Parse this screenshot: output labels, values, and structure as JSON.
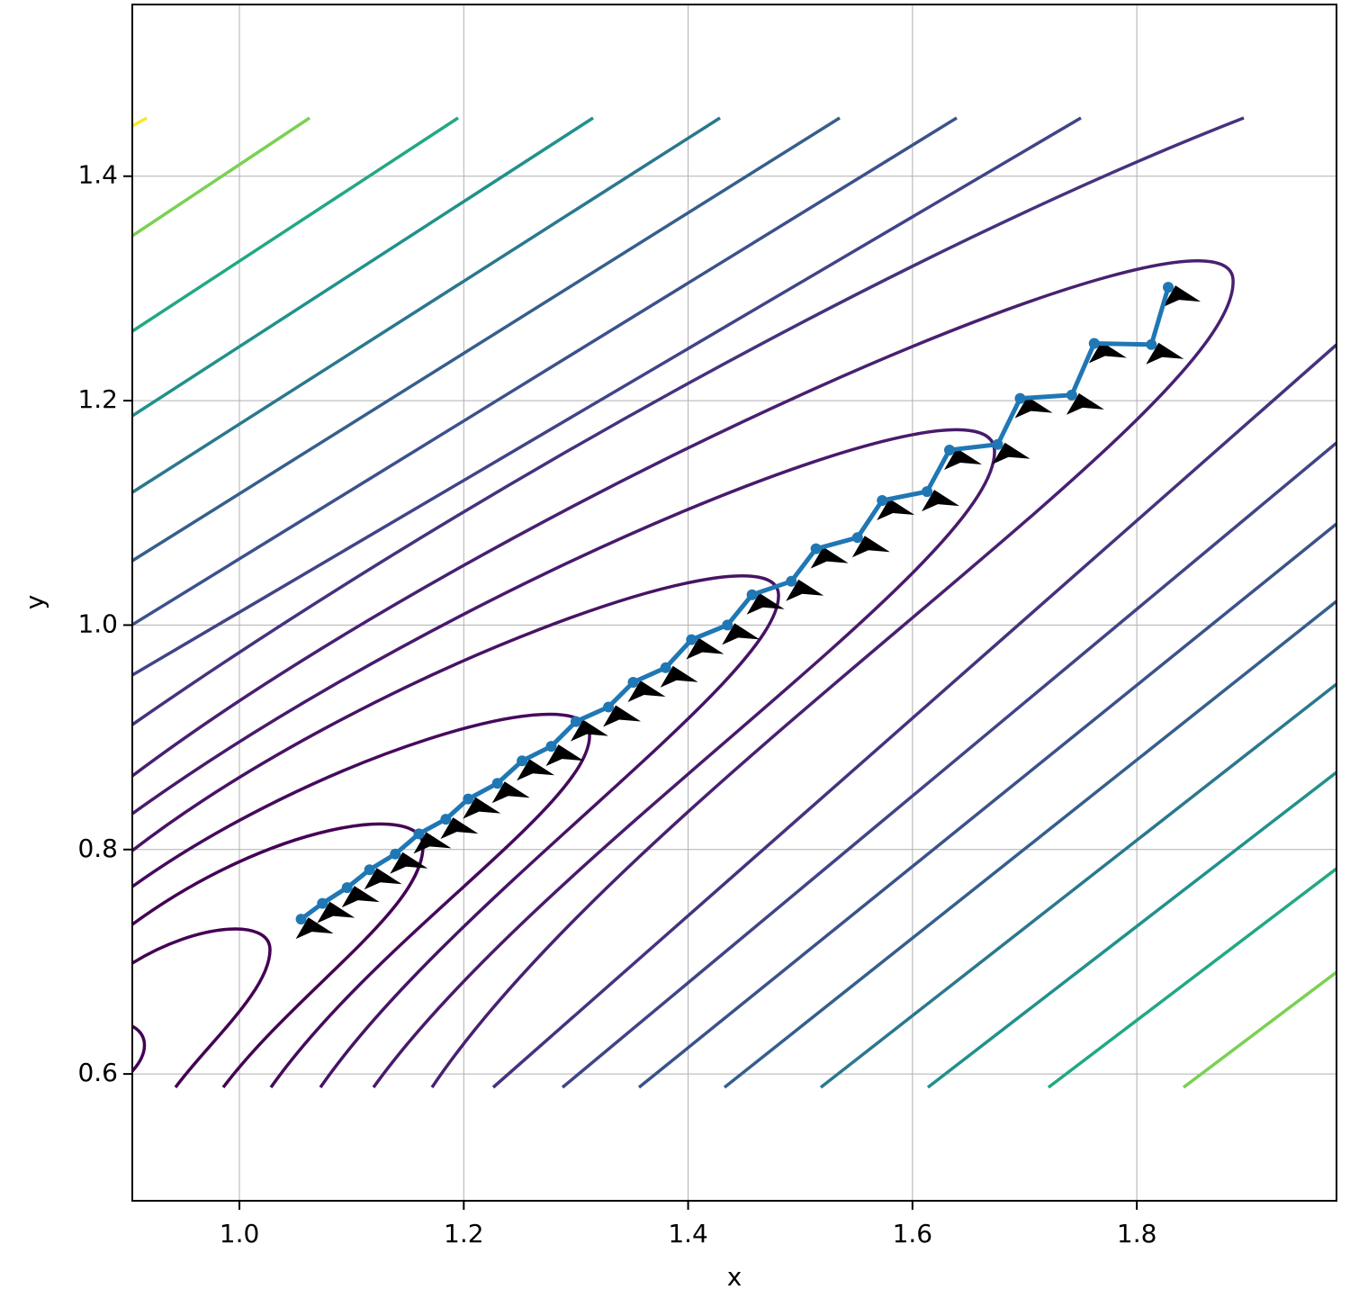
{
  "chart_data": {
    "type": "line",
    "xlabel": "x",
    "ylabel": "y",
    "xlim": [
      0.9045,
      1.978
    ],
    "ylim": [
      0.487,
      1.553
    ],
    "xticks": [
      {
        "value": 1,
        "label": "1.0"
      },
      1.2,
      1.4,
      1.6,
      1.8
    ],
    "yticks": [
      0.6,
      0.8,
      {
        "value": 1,
        "label": "1.0"
      },
      1.2,
      1.4
    ],
    "grid": true,
    "arrows": true,
    "series": [
      {
        "color": "#1f77b4",
        "x": [
          1.828,
          1.813,
          1.762,
          1.742,
          1.696,
          1.676,
          1.633,
          1.613,
          1.573,
          1.551,
          1.514,
          1.492,
          1.457,
          1.435,
          1.403,
          1.38,
          1.351,
          1.329,
          1.3,
          1.278,
          1.252,
          1.23,
          1.204,
          1.184,
          1.16,
          1.139,
          1.116,
          1.096,
          1.074,
          1.055
        ],
        "values": [
          1.301,
          1.25,
          1.251,
          1.205,
          1.202,
          1.161,
          1.156,
          1.119,
          1.111,
          1.078,
          1.068,
          1.039,
          1.027,
          1.0,
          0.987,
          0.962,
          0.949,
          0.927,
          0.914,
          0.892,
          0.879,
          0.859,
          0.845,
          0.827,
          0.814,
          0.796,
          0.782,
          0.766,
          0.752,
          0.738
        ]
      }
    ]
  }
}
